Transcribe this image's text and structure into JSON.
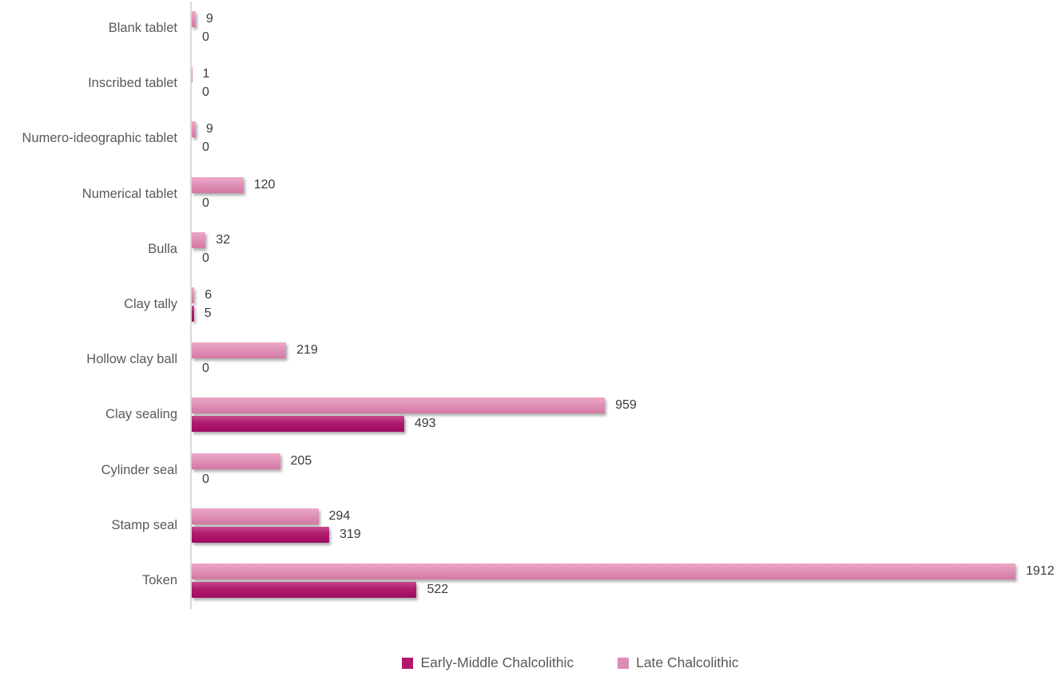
{
  "chart_data": {
    "type": "bar",
    "orientation": "horizontal",
    "title": "",
    "xlabel": "",
    "ylabel": "",
    "xlim": [
      0,
      1912
    ],
    "grid": false,
    "value_labels": true,
    "legend_position": "bottom",
    "categories": [
      "Blank tablet",
      "Inscribed tablet",
      "Numero-ideographic tablet",
      "Numerical tablet",
      "Bulla",
      "Clay tally",
      "Hollow clay ball",
      "Clay sealing",
      "Cylinder seal",
      "Stamp seal",
      "Token"
    ],
    "series": [
      {
        "name": "Early-Middle Chalcolithic",
        "color": "#b0196c",
        "values": [
          0,
          0,
          0,
          0,
          0,
          5,
          0,
          493,
          0,
          319,
          522
        ]
      },
      {
        "name": "Late Chalcolithic",
        "color": "#dd8db3",
        "values": [
          9,
          1,
          9,
          120,
          32,
          6,
          219,
          959,
          205,
          294,
          1912
        ]
      }
    ],
    "bar_display_order_top_to_bottom": [
      "Late Chalcolithic",
      "Early-Middle Chalcolithic"
    ],
    "axis_line_color": "#d9d9d9",
    "category_label_color": "#595959",
    "value_label_color": "#3a3a3a",
    "legend_text_color": "#595959"
  }
}
